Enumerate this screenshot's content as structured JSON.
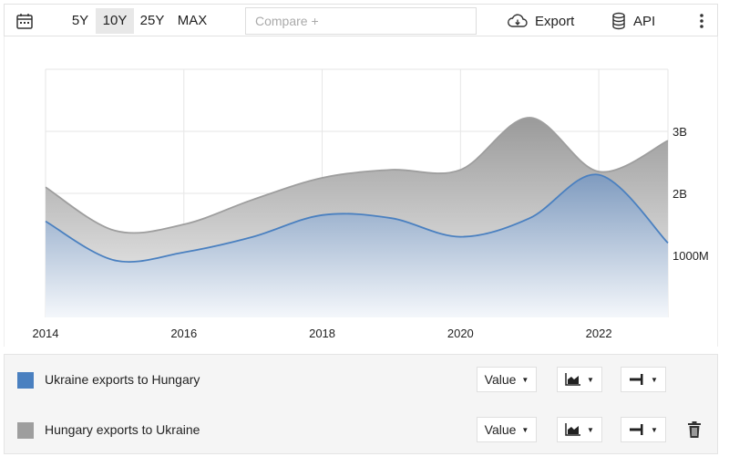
{
  "toolbar": {
    "ranges": [
      "5Y",
      "10Y",
      "25Y",
      "MAX"
    ],
    "active_range": "10Y",
    "compare_placeholder": "Compare +",
    "export_label": "Export",
    "api_label": "API"
  },
  "legend": {
    "series": [
      {
        "name": "Ukraine exports to Hungary",
        "color": "#4a80c0",
        "mode_label": "Value"
      },
      {
        "name": "Hungary exports to Ukraine",
        "color": "#9e9e9e",
        "mode_label": "Value"
      }
    ]
  },
  "chart_data": {
    "type": "area",
    "stacked": true,
    "x": [
      2014,
      2015,
      2016,
      2017,
      2018,
      2019,
      2020,
      2021,
      2022,
      2023
    ],
    "series": [
      {
        "name": "Ukraine exports to Hungary",
        "values": [
          1.55,
          0.92,
          1.05,
          1.3,
          1.65,
          1.6,
          1.3,
          1.6,
          2.3,
          1.2
        ]
      },
      {
        "name": "Hungary exports to Ukraine",
        "values": [
          0.55,
          0.48,
          0.45,
          0.6,
          0.6,
          0.78,
          1.08,
          1.62,
          0.05,
          1.65
        ]
      }
    ],
    "x_ticks": [
      2014,
      2016,
      2018,
      2020,
      2022
    ],
    "y_ticks": [
      {
        "value": 1,
        "label": "1000M"
      },
      {
        "value": 2,
        "label": "2B"
      },
      {
        "value": 3,
        "label": "3B"
      }
    ],
    "ylim": [
      0,
      4
    ],
    "xlim": [
      2014,
      2023
    ],
    "grid": true,
    "y_axis_position": "right",
    "colors": {
      "series1": "#4a80c0",
      "series2": "#9e9e9e"
    }
  }
}
